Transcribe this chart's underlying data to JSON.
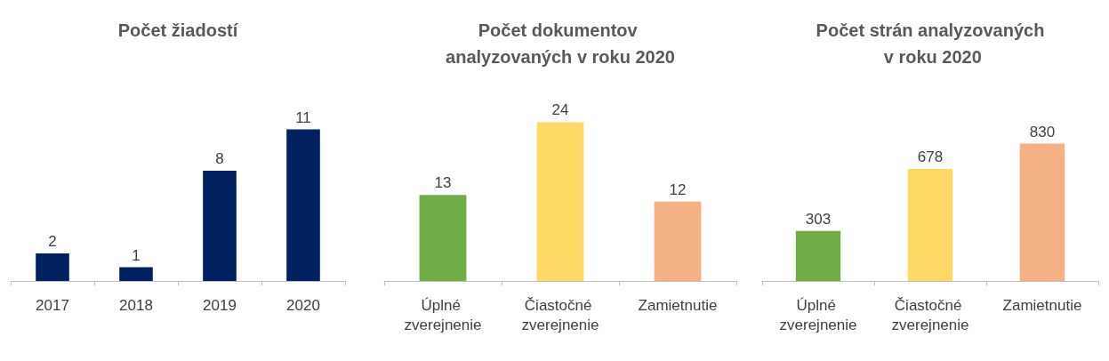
{
  "chart_data": [
    {
      "type": "bar",
      "title": "Počet žiadostí",
      "categories": [
        "2017",
        "2018",
        "2019",
        "2020"
      ],
      "values": [
        2,
        1,
        8,
        11
      ],
      "color": "#002060",
      "data_labels": true
    },
    {
      "type": "bar",
      "title": "Počet dokumentov analyzovaných v roku 2020",
      "categories": [
        "Úplné zverejnenie",
        "Čiastočné zverejnenie",
        "Zamietnutie"
      ],
      "values": [
        13,
        24,
        12
      ],
      "colors": [
        "#70ad47",
        "#ffd966",
        "#f4b183"
      ],
      "data_labels": true
    },
    {
      "type": "bar",
      "title": "Počet strán analyzovaných v roku 2020",
      "categories": [
        "Úplné zverejnenie",
        "Čiastočné zverejnenie",
        "Zamietnutie"
      ],
      "values": [
        303,
        678,
        830
      ],
      "colors": [
        "#70ad47",
        "#ffd966",
        "#f4b183"
      ],
      "data_labels": true
    }
  ]
}
